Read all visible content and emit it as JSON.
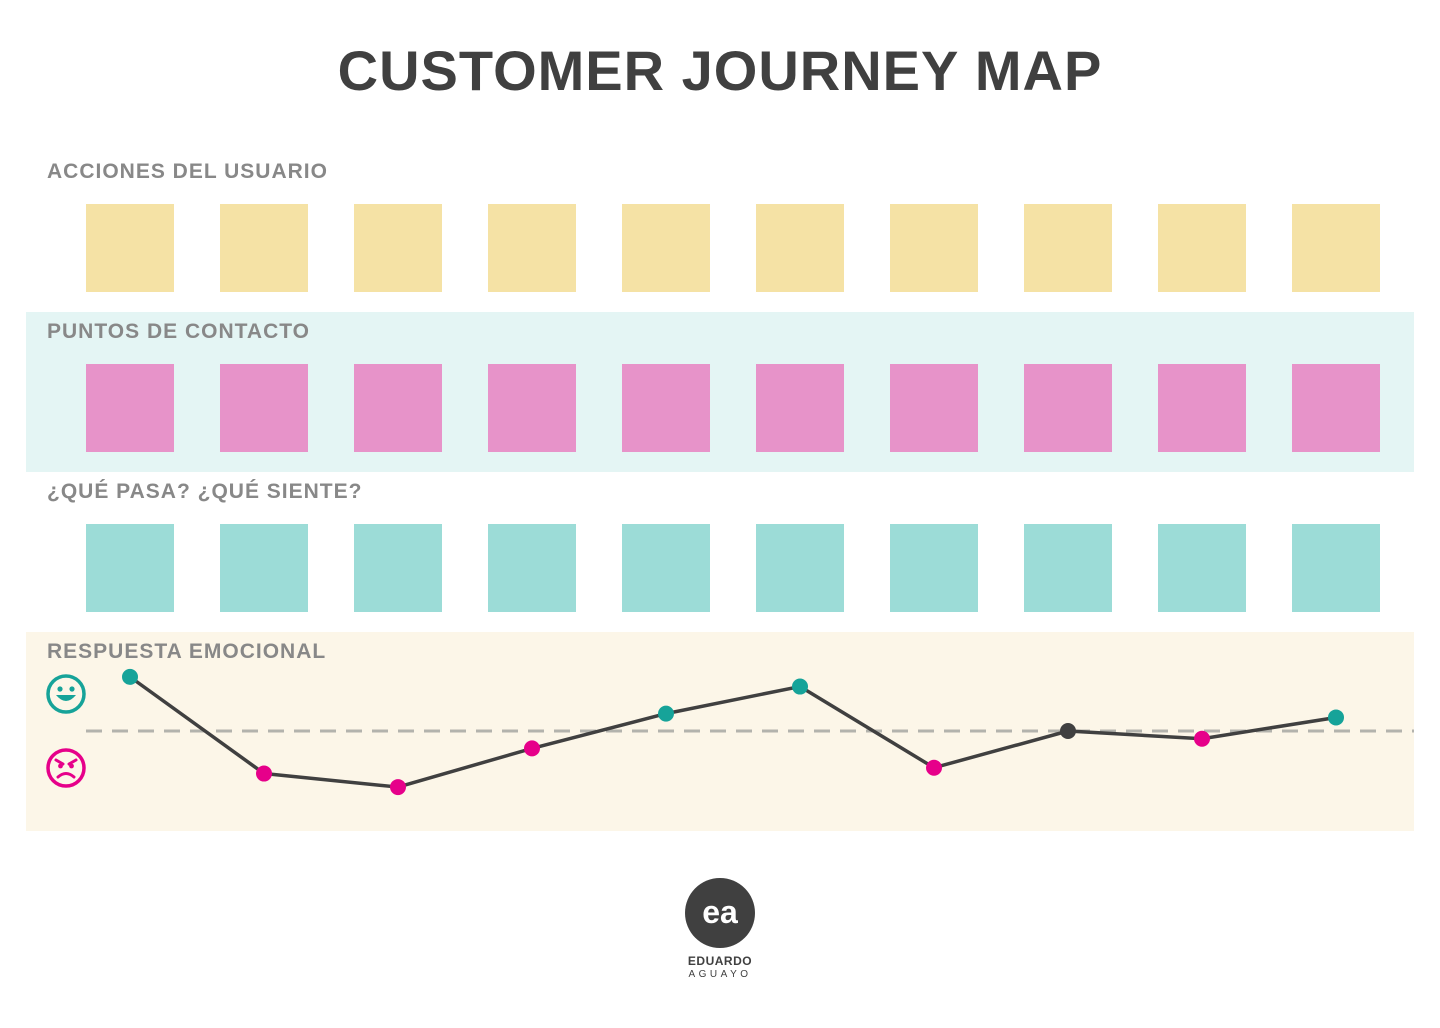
{
  "title": "CUSTOMER JOURNEY MAP",
  "sections": {
    "actions": {
      "label": "ACCIONES DEL USUARIO",
      "card_count": 10,
      "color": "#f5e2a5"
    },
    "contact": {
      "label": "PUNTOS DE CONTACTO",
      "card_count": 10,
      "color": "#e793c9",
      "band_color": "#e4f5f4"
    },
    "feel": {
      "label": "¿QUÉ PASA? ¿QUÉ SIENTE?",
      "card_count": 10,
      "color": "#9cdcd7"
    },
    "emotion": {
      "label": "RESPUESTA EMOCIONAL",
      "band_color": "#fcf6e8"
    }
  },
  "emotion_scale": {
    "top_icon": "happy-face-icon",
    "bottom_icon": "angry-face-icon",
    "positive_color": "#16a399",
    "negative_color": "#e6008a",
    "neutral_color": "#404040",
    "baseline_style": "dashed"
  },
  "chart_data": {
    "type": "line",
    "x": [
      1,
      2,
      3,
      4,
      5,
      6,
      7,
      8,
      9,
      10
    ],
    "values": [
      2.8,
      -2.2,
      -2.9,
      -0.9,
      0.9,
      2.3,
      -1.9,
      0,
      -0.4,
      0.7
    ],
    "sentiment": [
      "positive",
      "negative",
      "negative",
      "negative",
      "positive",
      "positive",
      "negative",
      "neutral",
      "negative",
      "positive"
    ],
    "ylim": [
      -3,
      3
    ],
    "baseline": 0
  },
  "logo": {
    "mark": "ea",
    "name": "EDUARDO",
    "surname": "AGUAYO"
  }
}
